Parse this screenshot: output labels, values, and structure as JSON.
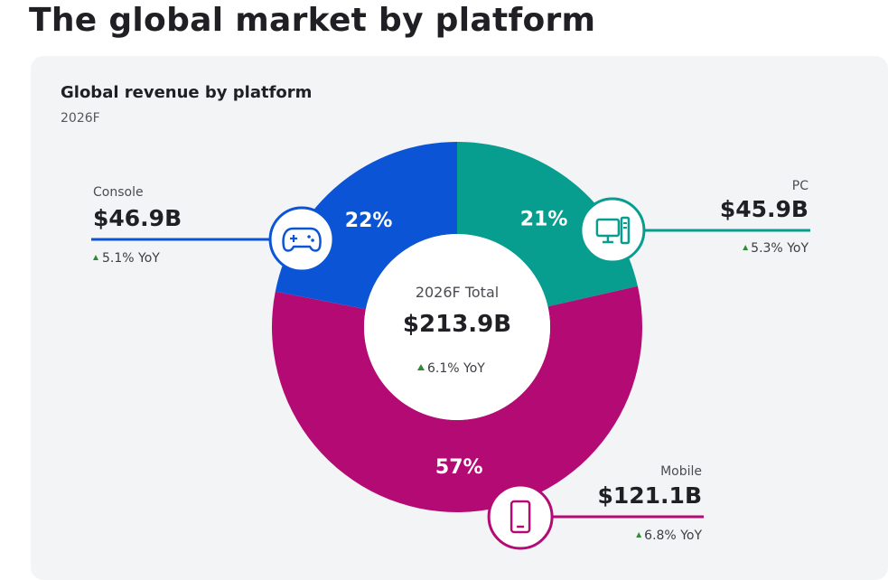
{
  "page": {
    "title": "The global market by platform"
  },
  "card": {
    "title": "Global revenue by platform",
    "subtitle": "2026F"
  },
  "chart_data": {
    "type": "pie",
    "variant": "donut",
    "title": "Global revenue by platform",
    "subtitle": "2026F",
    "center": {
      "label": "2026F Total",
      "value": "$213.9B",
      "yoy": "6.1% YoY"
    },
    "slices": [
      {
        "name": "PC",
        "value": 45.9,
        "value_label": "$45.9B",
        "percent": 21,
        "percent_label": "21%",
        "yoy": "5.3% YoY",
        "color": "#079d8f",
        "icon": "desktop-computer-icon"
      },
      {
        "name": "Mobile",
        "value": 121.1,
        "value_label": "$121.1B",
        "percent": 57,
        "percent_label": "57%",
        "yoy": "6.8% YoY",
        "color": "#b30a74",
        "icon": "smartphone-icon"
      },
      {
        "name": "Console",
        "value": 46.9,
        "value_label": "$46.9B",
        "percent": 22,
        "percent_label": "22%",
        "yoy": "5.1% YoY",
        "color": "#0c54d6",
        "icon": "gamepad-icon"
      }
    ]
  }
}
